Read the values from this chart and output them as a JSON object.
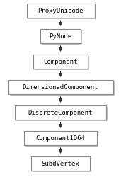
{
  "nodes": [
    "ProxyUnicode",
    "PyNode",
    "Component",
    "DimensionedComponent",
    "DiscreteComponent",
    "Component1D64",
    "SubdVertex"
  ],
  "bg_color": "#ffffff",
  "box_facecolor": "#ffffff",
  "box_edgecolor": "#888888",
  "box_shadow_color": "#c0c0c0",
  "text_color": "#000000",
  "arrow_color": "#303030",
  "font_size": 6.5,
  "font_family": "DejaVu Sans Mono"
}
